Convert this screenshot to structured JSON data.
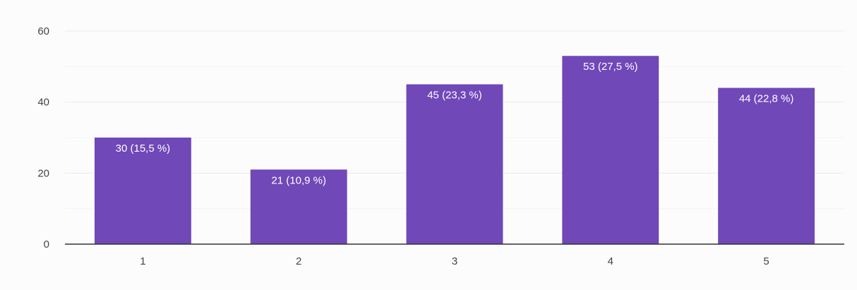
{
  "chart_data": {
    "type": "bar",
    "categories": [
      "1",
      "2",
      "3",
      "4",
      "5"
    ],
    "values": [
      30,
      21,
      45,
      53,
      44
    ],
    "data_labels": [
      "30 (15,5 %)",
      "21 (10,9 %)",
      "45 (23,3 %)",
      "53 (27,5 %)",
      "44 (22,8 %)"
    ],
    "ylim": [
      0,
      60
    ],
    "yticks": [
      0,
      20,
      40,
      60
    ],
    "title": "",
    "xlabel": "",
    "ylabel": "",
    "grid": true,
    "legend": "none",
    "bar_color": "#7048b8",
    "gridline_color": "#ebebeb",
    "minor_gridline_color": "#f4f4f4",
    "axis_color": "#333333"
  }
}
